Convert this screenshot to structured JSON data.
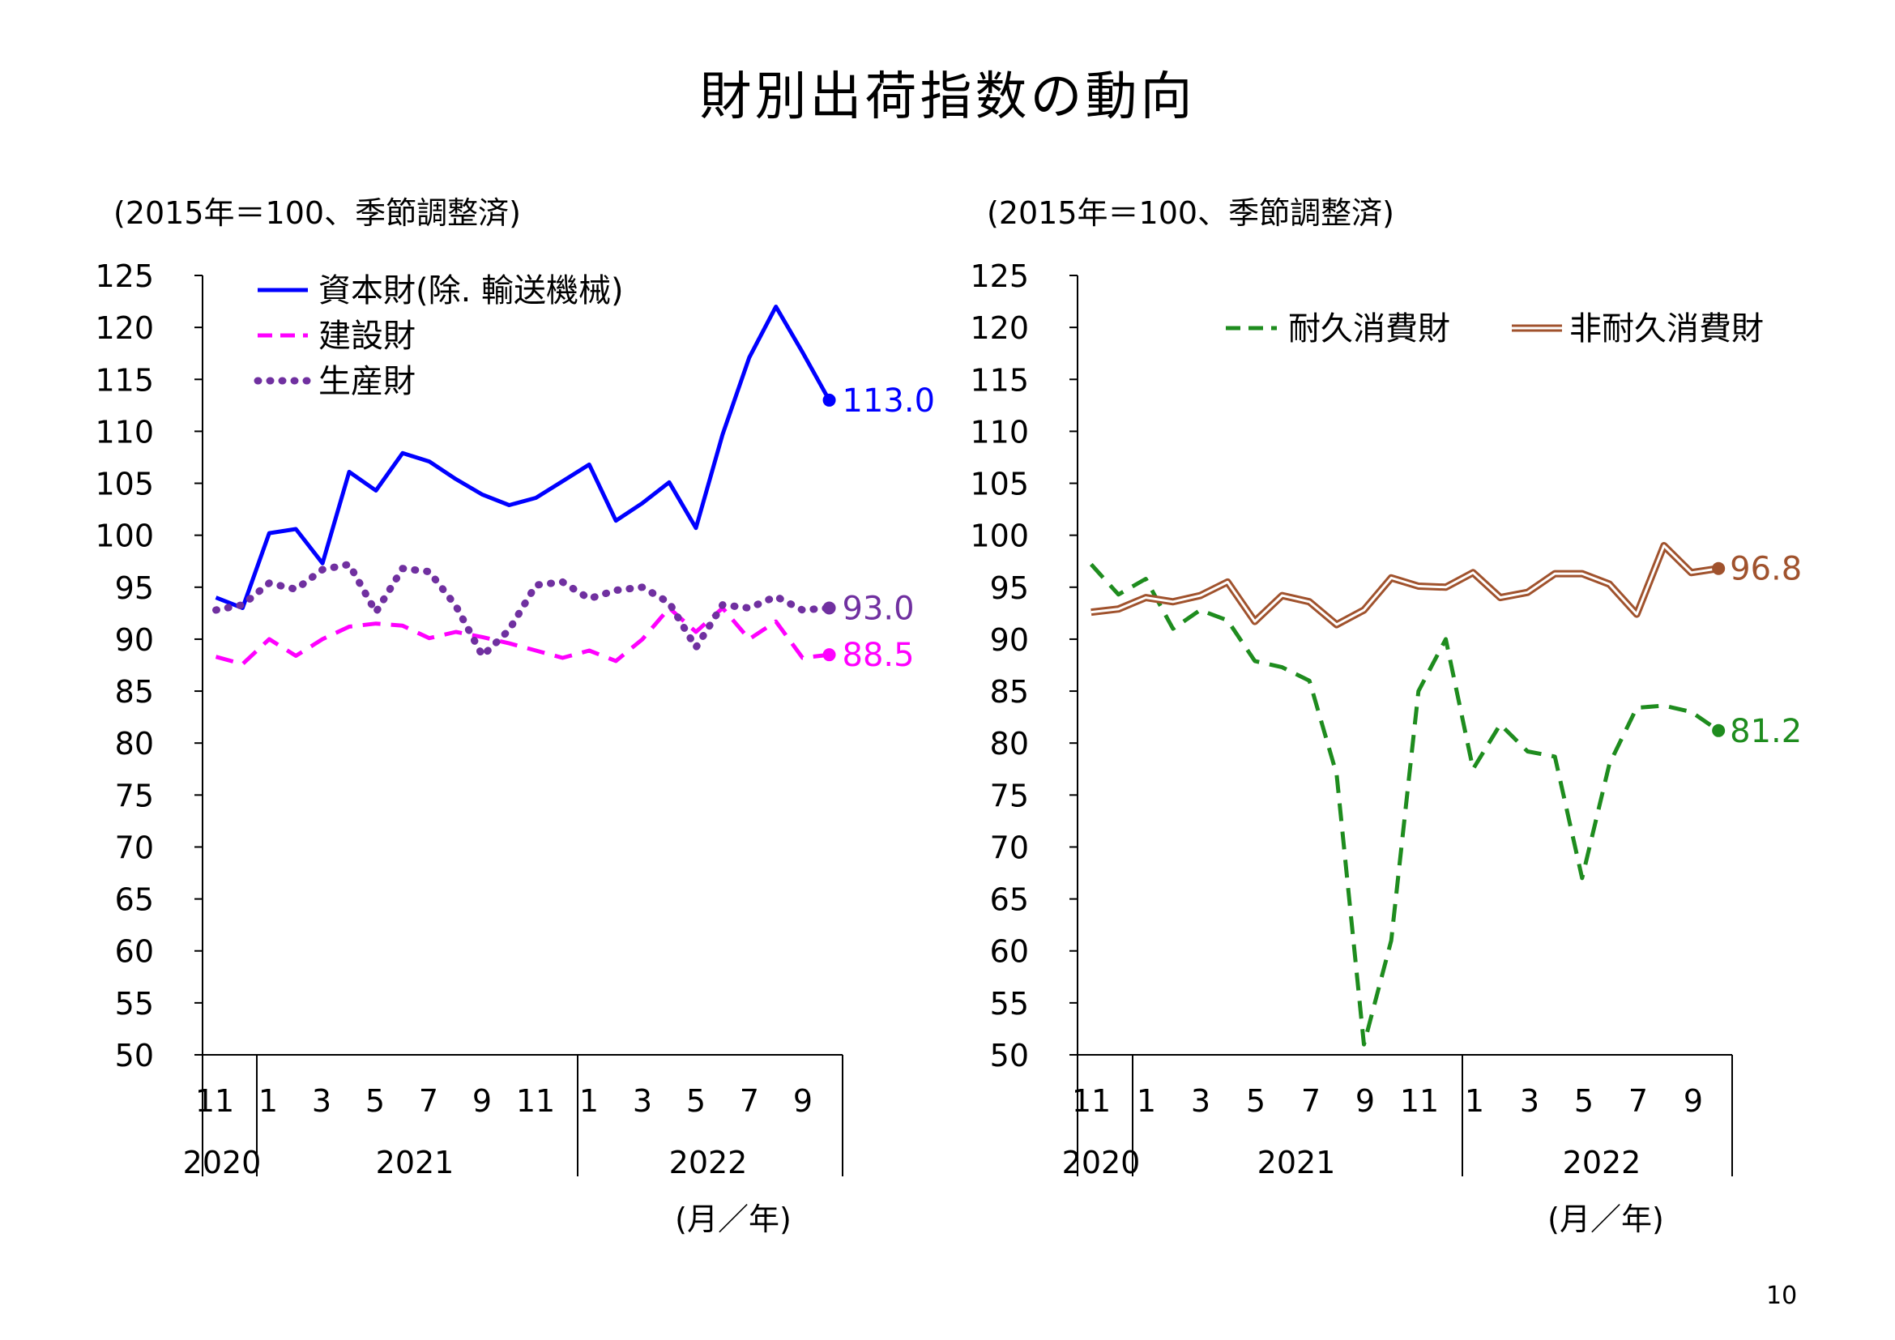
{
  "page": {
    "title": "財別出荷指数の動向",
    "page_number": "10"
  },
  "chart_data": [
    {
      "type": "line",
      "unit_label": "(2015年＝100、季節調整済)",
      "ylim": [
        50,
        125
      ],
      "y_ticks": [
        "125",
        "120",
        "115",
        "110",
        "105",
        "100",
        "95",
        "90",
        "85",
        "80",
        "75",
        "70",
        "65",
        "60",
        "55",
        "50"
      ],
      "x_tick_labels": [
        "11",
        "1",
        "3",
        "5",
        "7",
        "9",
        "11",
        "1",
        "3",
        "5",
        "7",
        "9"
      ],
      "year_labels": [
        "2020",
        "2021",
        "2022"
      ],
      "x_unit_label": "(月／年)",
      "legend_position": "top-left",
      "series": [
        {
          "name": "資本財(除. 輸送機械)",
          "color": "#0000ff",
          "style": "solid",
          "values": [
            94.0,
            93.0,
            100.2,
            100.6,
            97.3,
            106.1,
            104.3,
            107.9,
            107.1,
            105.4,
            103.9,
            102.9,
            103.6,
            105.2,
            106.8,
            101.4,
            103.1,
            105.1,
            100.7,
            109.7,
            117.1,
            122.0,
            117.6,
            113.0
          ],
          "end_label": "113.0"
        },
        {
          "name": "建設財",
          "color": "#ff00ff",
          "style": "dashed",
          "values": [
            88.3,
            87.6,
            90.0,
            88.4,
            90.0,
            91.2,
            91.5,
            91.3,
            90.1,
            90.7,
            90.2,
            89.6,
            88.9,
            88.2,
            88.9,
            87.9,
            90.0,
            93.0,
            90.7,
            93.0,
            90.0,
            91.7,
            88.2,
            88.5
          ],
          "end_label": "88.5"
        },
        {
          "name": "生産財",
          "color": "#7030a0",
          "style": "dotted",
          "values": [
            92.8,
            93.3,
            95.4,
            94.8,
            96.7,
            97.2,
            92.6,
            96.8,
            96.5,
            93.2,
            88.4,
            90.9,
            95.2,
            95.5,
            93.9,
            94.7,
            95.0,
            93.5,
            89.2,
            93.3,
            93.0,
            94.1,
            92.8,
            93.0
          ],
          "end_label": "93.0"
        }
      ]
    },
    {
      "type": "line",
      "unit_label": "(2015年＝100、季節調整済)",
      "ylim": [
        50,
        125
      ],
      "y_ticks": [
        "125",
        "120",
        "115",
        "110",
        "105",
        "100",
        "95",
        "90",
        "85",
        "80",
        "75",
        "70",
        "65",
        "60",
        "55",
        "50"
      ],
      "x_tick_labels": [
        "11",
        "1",
        "3",
        "5",
        "7",
        "9",
        "11",
        "1",
        "3",
        "5",
        "7",
        "9"
      ],
      "year_labels": [
        "2020",
        "2021",
        "2022"
      ],
      "x_unit_label": "(月／年)",
      "legend_position": "top-right",
      "series": [
        {
          "name": "耐久消費財",
          "color": "#1e8c1e",
          "style": "dashed",
          "values": [
            97.2,
            94.3,
            95.8,
            91.0,
            92.8,
            91.8,
            87.9,
            87.3,
            86.0,
            77.0,
            51.0,
            61.0,
            85.0,
            90.0,
            77.5,
            81.8,
            79.2,
            78.7,
            67.0,
            78.0,
            83.4,
            83.6,
            83.0,
            81.2
          ],
          "end_label": "81.2"
        },
        {
          "name": "非耐久消費財",
          "color": "#a0522d",
          "style": "double",
          "values": [
            92.6,
            92.9,
            94.0,
            93.6,
            94.2,
            95.5,
            91.7,
            94.2,
            93.6,
            91.4,
            92.8,
            95.9,
            95.1,
            95.0,
            96.4,
            94.0,
            94.5,
            96.3,
            96.3,
            95.3,
            92.4,
            99.0,
            96.4,
            96.8
          ],
          "end_label": "96.8"
        }
      ]
    }
  ]
}
